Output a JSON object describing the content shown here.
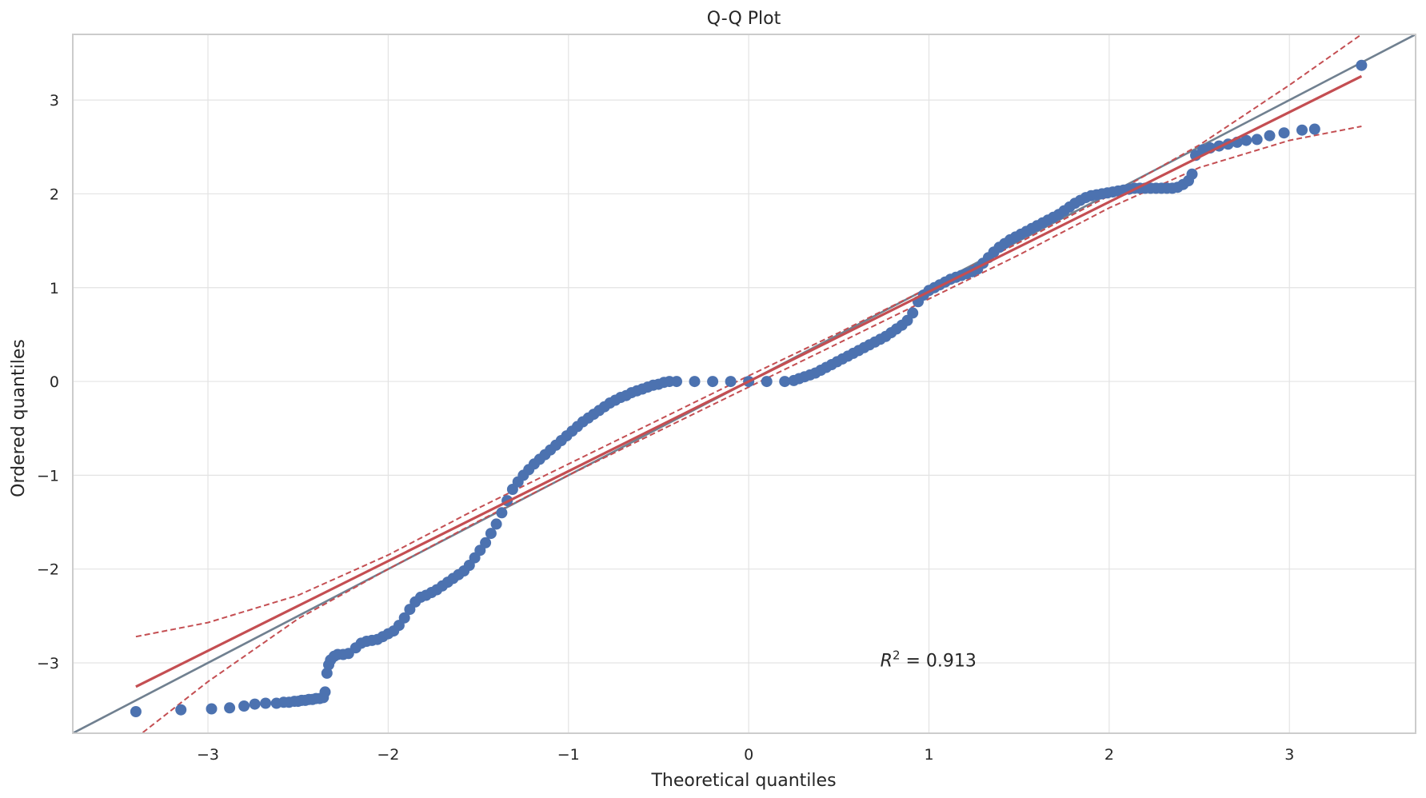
{
  "chart_data": {
    "type": "scatter",
    "title": "Q-Q Plot",
    "xlabel": "Theoretical quantiles",
    "ylabel": "Ordered quantiles",
    "xlim": [
      -3.75,
      3.7
    ],
    "ylim": [
      -3.75,
      3.7
    ],
    "x_ticks": [
      -3,
      -2,
      -1,
      0,
      1,
      2,
      3
    ],
    "y_ticks": [
      -3,
      -2,
      -1,
      0,
      1,
      2,
      3
    ],
    "x_tick_labels": [
      "−3",
      "−2",
      "−1",
      "0",
      "1",
      "2",
      "3"
    ],
    "y_tick_labels": [
      "−3",
      "−2",
      "−1",
      "0",
      "1",
      "2",
      "3"
    ],
    "grid": true,
    "annotation": {
      "math_var": "R",
      "exponent": "2",
      "rest": " = 0.913",
      "x": 0.73,
      "y": -2.97
    },
    "colors": {
      "points": "#4c72b0",
      "fit_line": "#c44e52",
      "reference_line": "#708090",
      "grid": "#e3e3e3",
      "spine": "#cccccc",
      "text": "#262626"
    },
    "reference_line": {
      "slope": 1,
      "intercept": 0
    },
    "fit_line": {
      "slope": 0.957,
      "intercept": 0.0,
      "x_range": [
        -3.4,
        3.4
      ]
    },
    "confidence_band": {
      "x": [
        -3.4,
        -3.0,
        -2.5,
        -2.0,
        -1.5,
        -1.0,
        -0.5,
        0.0,
        0.5,
        1.0,
        1.5,
        2.0,
        2.5,
        3.0,
        3.4
      ],
      "upper": [
        -2.72,
        -2.57,
        -2.28,
        -1.85,
        -1.35,
        -0.88,
        -0.41,
        0.06,
        0.52,
        1.0,
        1.48,
        1.98,
        2.52,
        3.16,
        3.7
      ],
      "lower": [
        -3.8,
        -3.2,
        -2.53,
        -2.0,
        -1.49,
        -1.0,
        -0.53,
        -0.06,
        0.41,
        0.88,
        1.35,
        1.85,
        2.28,
        2.57,
        2.72
      ]
    },
    "series": [
      {
        "type": "scatter",
        "x": [
          -3.4,
          -3.15,
          -2.98,
          -2.88,
          -2.8,
          -2.74,
          -2.68,
          -2.62,
          -2.58,
          -2.55,
          -2.52,
          -2.5,
          -2.48,
          -2.46,
          -2.44,
          -2.42,
          -2.4,
          -2.38,
          -2.36,
          -2.35,
          -2.34,
          -2.33,
          -2.32,
          -2.3,
          -2.28,
          -2.25,
          -2.22,
          -2.18,
          -2.15,
          -2.12,
          -2.09,
          -2.06,
          -2.03,
          -2.0,
          -1.97,
          -1.94,
          -1.91,
          -1.88,
          -1.85,
          -1.82,
          -1.79,
          -1.76,
          -1.73,
          -1.7,
          -1.67,
          -1.64,
          -1.61,
          -1.58,
          -1.55,
          -1.52,
          -1.49,
          -1.46,
          -1.43,
          -1.4,
          -1.37,
          -1.34,
          -1.31,
          -1.28,
          -1.25,
          -1.22,
          -1.19,
          -1.16,
          -1.13,
          -1.1,
          -1.07,
          -1.04,
          -1.01,
          -0.98,
          -0.95,
          -0.92,
          -0.89,
          -0.86,
          -0.83,
          -0.8,
          -0.77,
          -0.74,
          -0.71,
          -0.68,
          -0.65,
          -0.62,
          -0.59,
          -0.56,
          -0.53,
          -0.5,
          -0.47,
          -0.44,
          -0.4,
          -0.3,
          -0.2,
          -0.1,
          0.0,
          0.1,
          0.2,
          0.25,
          0.28,
          0.31,
          0.34,
          0.37,
          0.4,
          0.43,
          0.46,
          0.49,
          0.52,
          0.55,
          0.58,
          0.61,
          0.64,
          0.67,
          0.7,
          0.73,
          0.76,
          0.79,
          0.82,
          0.85,
          0.88,
          0.91,
          0.94,
          0.97,
          1.0,
          1.03,
          1.06,
          1.09,
          1.12,
          1.15,
          1.18,
          1.21,
          1.24,
          1.27,
          1.3,
          1.33,
          1.36,
          1.39,
          1.42,
          1.45,
          1.48,
          1.51,
          1.54,
          1.57,
          1.6,
          1.63,
          1.66,
          1.69,
          1.72,
          1.75,
          1.78,
          1.81,
          1.84,
          1.87,
          1.9,
          1.93,
          1.96,
          1.99,
          2.02,
          2.05,
          2.08,
          2.11,
          2.14,
          2.17,
          2.2,
          2.23,
          2.26,
          2.29,
          2.32,
          2.35,
          2.38,
          2.41,
          2.44,
          2.46,
          2.48,
          2.52,
          2.56,
          2.61,
          2.66,
          2.71,
          2.76,
          2.82,
          2.89,
          2.97,
          3.07,
          3.14,
          3.4
        ],
        "y": [
          -3.52,
          -3.5,
          -3.49,
          -3.48,
          -3.46,
          -3.44,
          -3.43,
          -3.43,
          -3.42,
          -3.42,
          -3.41,
          -3.41,
          -3.4,
          -3.4,
          -3.39,
          -3.39,
          -3.38,
          -3.38,
          -3.37,
          -3.31,
          -3.11,
          -3.02,
          -2.97,
          -2.93,
          -2.91,
          -2.91,
          -2.9,
          -2.84,
          -2.79,
          -2.77,
          -2.76,
          -2.75,
          -2.72,
          -2.69,
          -2.66,
          -2.6,
          -2.52,
          -2.43,
          -2.35,
          -2.3,
          -2.28,
          -2.25,
          -2.22,
          -2.18,
          -2.14,
          -2.1,
          -2.06,
          -2.02,
          -1.96,
          -1.88,
          -1.8,
          -1.72,
          -1.62,
          -1.52,
          -1.4,
          -1.27,
          -1.15,
          -1.07,
          -1.0,
          -0.94,
          -0.88,
          -0.83,
          -0.78,
          -0.73,
          -0.68,
          -0.63,
          -0.58,
          -0.53,
          -0.48,
          -0.43,
          -0.39,
          -0.35,
          -0.31,
          -0.27,
          -0.23,
          -0.2,
          -0.17,
          -0.15,
          -0.12,
          -0.1,
          -0.08,
          -0.06,
          -0.04,
          -0.03,
          -0.01,
          0.0,
          0.0,
          0.0,
          0.0,
          0.0,
          0.0,
          0.0,
          0.0,
          0.01,
          0.03,
          0.05,
          0.07,
          0.09,
          0.12,
          0.15,
          0.18,
          0.21,
          0.24,
          0.27,
          0.3,
          0.33,
          0.36,
          0.39,
          0.42,
          0.45,
          0.48,
          0.52,
          0.56,
          0.6,
          0.65,
          0.73,
          0.85,
          0.92,
          0.97,
          1.0,
          1.03,
          1.06,
          1.09,
          1.11,
          1.13,
          1.15,
          1.17,
          1.2,
          1.26,
          1.32,
          1.38,
          1.43,
          1.47,
          1.51,
          1.54,
          1.57,
          1.6,
          1.63,
          1.66,
          1.69,
          1.72,
          1.75,
          1.78,
          1.82,
          1.86,
          1.9,
          1.93,
          1.96,
          1.98,
          1.99,
          2.0,
          2.01,
          2.02,
          2.03,
          2.04,
          2.05,
          2.06,
          2.06,
          2.06,
          2.06,
          2.06,
          2.06,
          2.06,
          2.06,
          2.07,
          2.1,
          2.14,
          2.21,
          2.41,
          2.47,
          2.49,
          2.51,
          2.53,
          2.55,
          2.57,
          2.58,
          2.62,
          2.65,
          2.68,
          2.69,
          3.37
        ]
      }
    ]
  }
}
